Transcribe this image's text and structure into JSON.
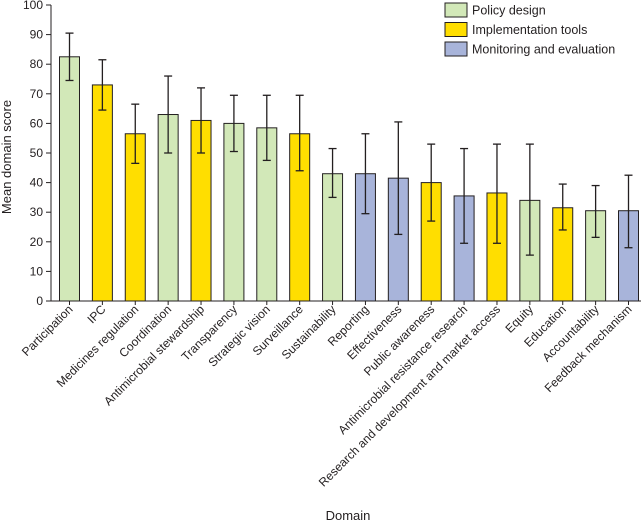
{
  "chart_data": {
    "type": "bar",
    "xlabel": "Domain",
    "ylabel": "Mean domain score",
    "ylim": [
      0,
      100
    ],
    "yticks": [
      0,
      10,
      20,
      30,
      40,
      50,
      60,
      70,
      80,
      90,
      100
    ],
    "grid": false,
    "legend_position": "top-right",
    "legend": [
      {
        "key": "policy",
        "label": "Policy design",
        "color": "#d2e8b8"
      },
      {
        "key": "implementation",
        "label": "Implementation tools",
        "color": "#ffde00"
      },
      {
        "key": "monitoring",
        "label": "Monitoring and evaluation",
        "color": "#a8b4da"
      }
    ],
    "bars": [
      {
        "category": "Participation",
        "group": "policy",
        "value": 82.5,
        "err_low": 74.5,
        "err_high": 90.5
      },
      {
        "category": "IPC",
        "group": "implementation",
        "value": 73,
        "err_low": 64.5,
        "err_high": 81.5
      },
      {
        "category": "Medicines regulation",
        "group": "implementation",
        "value": 56.5,
        "err_low": 46.5,
        "err_high": 66.5
      },
      {
        "category": "Coordination",
        "group": "policy",
        "value": 63,
        "err_low": 50,
        "err_high": 76
      },
      {
        "category": "Antimicrobial stewardship",
        "group": "implementation",
        "value": 61,
        "err_low": 50,
        "err_high": 72
      },
      {
        "category": "Transparency",
        "group": "policy",
        "value": 60,
        "err_low": 50.5,
        "err_high": 69.5
      },
      {
        "category": "Strategic vision",
        "group": "policy",
        "value": 58.5,
        "err_low": 47.5,
        "err_high": 69.5
      },
      {
        "category": "Surveillance",
        "group": "implementation",
        "value": 56.5,
        "err_low": 44,
        "err_high": 69.5
      },
      {
        "category": "Sustainability",
        "group": "policy",
        "value": 43,
        "err_low": 35,
        "err_high": 51.5
      },
      {
        "category": "Reporting",
        "group": "monitoring",
        "value": 43,
        "err_low": 29.5,
        "err_high": 56.5
      },
      {
        "category": "Effectiveness",
        "group": "monitoring",
        "value": 41.5,
        "err_low": 22.5,
        "err_high": 60.5
      },
      {
        "category": "Public awareness",
        "group": "implementation",
        "value": 40,
        "err_low": 27,
        "err_high": 53
      },
      {
        "category": "Antimicrobial resistance research",
        "group": "monitoring",
        "value": 35.5,
        "err_low": 19.5,
        "err_high": 51.5
      },
      {
        "category": "Research and development and market access",
        "group": "implementation",
        "value": 36.5,
        "err_low": 19.5,
        "err_high": 53
      },
      {
        "category": "Equity",
        "group": "policy",
        "value": 34,
        "err_low": 15.5,
        "err_high": 53
      },
      {
        "category": "Education",
        "group": "implementation",
        "value": 31.5,
        "err_low": 24,
        "err_high": 39.5
      },
      {
        "category": "Accountability",
        "group": "policy",
        "value": 30.5,
        "err_low": 21.5,
        "err_high": 39
      },
      {
        "category": "Feedback mechanism",
        "group": "monitoring",
        "value": 30.5,
        "err_low": 18,
        "err_high": 42.5
      }
    ]
  }
}
